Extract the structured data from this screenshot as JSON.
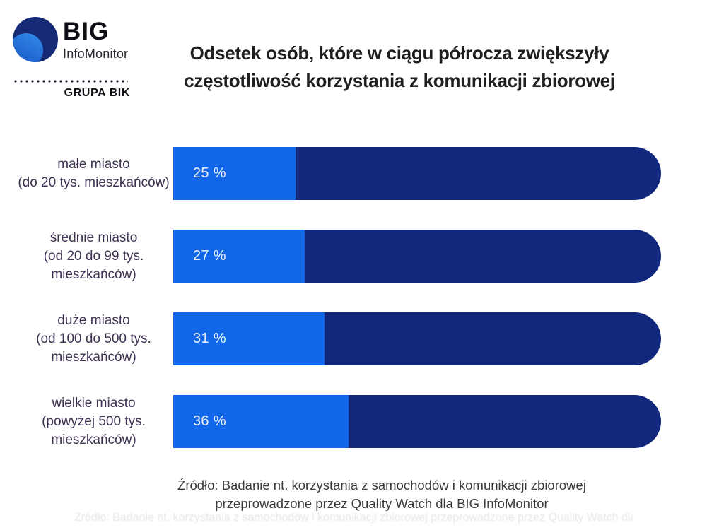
{
  "logo": {
    "big": "BIG",
    "infomonitor": "InfoMonitor",
    "grupa": "GRUPA BIK",
    "circle_color": "#162a75",
    "crescent_color": "#2b7de0"
  },
  "title": {
    "line1": "Odsetek osób, które w ciągu półrocza zwiększyły",
    "line2": "częstotliwość korzystania z komunikacji zbiorowej"
  },
  "chart_data": {
    "type": "bar",
    "orientation": "horizontal",
    "title": "Odsetek osób, które w ciągu półrocza zwiększyły częstotliwość korzystania z komunikacji zbiorowej",
    "unit": "%",
    "xlim": [
      0,
      100
    ],
    "grid": false,
    "legend": false,
    "colors": {
      "fill": "#1167e8",
      "track": "#11287c",
      "label_text": "#3e3152",
      "value_text": "#edf2fa"
    },
    "categories": [
      "małe miasto (do 20 tys. mieszkańców)",
      "średnie miasto (od 20 do 99 tys. mieszkańców)",
      "duże miasto (od 100 do 500 tys. mieszkańców)",
      "wielkie miasto (powyżej 500 tys. mieszkańców)"
    ],
    "values": [
      25,
      27,
      31,
      36
    ],
    "rows": [
      {
        "label_lines": [
          "małe miasto",
          "(do 20 tys. mieszkańców)"
        ],
        "value": 25,
        "value_label": "25 %"
      },
      {
        "label_lines": [
          "średnie miasto",
          "(od 20 do 99 tys.",
          "mieszkańców)"
        ],
        "value": 27,
        "value_label": "27 %"
      },
      {
        "label_lines": [
          "duże miasto",
          "(od 100 do 500 tys.",
          "mieszkańców)"
        ],
        "value": 31,
        "value_label": "31 %"
      },
      {
        "label_lines": [
          "wielkie miasto",
          "(powyżej 500 tys.",
          "mieszkańców)"
        ],
        "value": 36,
        "value_label": "36 %"
      }
    ]
  },
  "footer": {
    "line1": "Źródło: Badanie nt. korzystania z samochodów i komunikacji zbiorowej",
    "line2": "przeprowadzone przez Quality Watch dla BIG InfoMonitor"
  }
}
